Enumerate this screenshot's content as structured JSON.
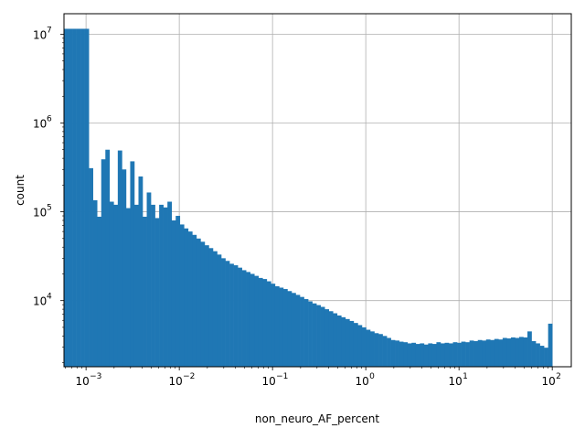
{
  "chart_data": {
    "type": "bar",
    "title": "",
    "xlabel": "non_neuro_AF_percent",
    "ylabel": "count",
    "x_scale": "log",
    "y_scale": "log",
    "xlim": [
      0.00058,
      160
    ],
    "ylim": [
      1800,
      17000000
    ],
    "grid": true,
    "bar_color": "#1f77b4",
    "x_ticks": [
      {
        "value": 0.001,
        "base": "10",
        "exp": "−3"
      },
      {
        "value": 0.01,
        "base": "10",
        "exp": "−2"
      },
      {
        "value": 0.1,
        "base": "10",
        "exp": "−1"
      },
      {
        "value": 1,
        "base": "10",
        "exp": "0"
      },
      {
        "value": 10,
        "base": "10",
        "exp": "1"
      },
      {
        "value": 100,
        "base": "10",
        "exp": "2"
      }
    ],
    "y_ticks": [
      {
        "value": 10000,
        "base": "10",
        "exp": "4"
      },
      {
        "value": 100000,
        "base": "10",
        "exp": "5"
      },
      {
        "value": 1000000,
        "base": "10",
        "exp": "6"
      },
      {
        "value": 10000000,
        "base": "10",
        "exp": "7"
      }
    ],
    "bins": {
      "x_start": 0.00058,
      "x_end": 100,
      "counts": [
        11500000,
        11500000,
        11500000,
        11500000,
        11500000,
        11500000,
        310000,
        135000,
        88000,
        390000,
        500000,
        130000,
        120000,
        490000,
        300000,
        110000,
        370000,
        120000,
        250000,
        88000,
        165000,
        120000,
        85000,
        120000,
        112000,
        130000,
        80000,
        90000,
        72000,
        65000,
        60000,
        55000,
        50000,
        46000,
        42000,
        39000,
        36000,
        33000,
        30000,
        28000,
        26000,
        25000,
        23500,
        22000,
        21000,
        20000,
        19000,
        18000,
        17500,
        16500,
        15500,
        14500,
        14000,
        13500,
        12800,
        12200,
        11600,
        11000,
        10400,
        9800,
        9300,
        8900,
        8500,
        8000,
        7600,
        7200,
        6800,
        6500,
        6200,
        5900,
        5600,
        5300,
        5000,
        4700,
        4500,
        4300,
        4200,
        4000,
        3800,
        3600,
        3550,
        3450,
        3400,
        3300,
        3350,
        3250,
        3300,
        3200,
        3300,
        3250,
        3400,
        3300,
        3350,
        3300,
        3400,
        3350,
        3450,
        3400,
        3550,
        3500,
        3600,
        3550,
        3650,
        3600,
        3700,
        3650,
        3800,
        3750,
        3850,
        3800,
        3900,
        3850,
        4500,
        3500,
        3300,
        3100,
        2950,
        5500
      ]
    }
  }
}
